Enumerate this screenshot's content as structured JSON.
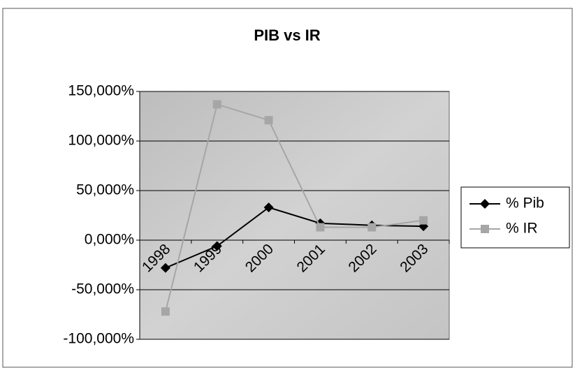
{
  "chart_data": {
    "type": "line",
    "title": "PIB vs IR",
    "categories": [
      "1998",
      "1999",
      "2000",
      "2001",
      "2002",
      "2003"
    ],
    "series": [
      {
        "name": "% Pib",
        "color": "#000000",
        "marker": "diamond",
        "values": [
          -28,
          -6,
          33,
          17,
          15,
          14
        ]
      },
      {
        "name": "% IR",
        "color": "#a6a6a6",
        "marker": "square",
        "values": [
          -72,
          137,
          121,
          13,
          13,
          20
        ]
      }
    ],
    "ylim": [
      -100,
      150
    ],
    "yticks": [
      {
        "value": -100,
        "label": "-100,000%"
      },
      {
        "value": -50,
        "label": "-50,000%"
      },
      {
        "value": 0,
        "label": "0,000%"
      },
      {
        "value": 50,
        "label": "50,000%"
      },
      {
        "value": 100,
        "label": "100,000%"
      },
      {
        "value": 150,
        "label": "150,000%"
      }
    ],
    "grid": true,
    "legend": "right"
  }
}
